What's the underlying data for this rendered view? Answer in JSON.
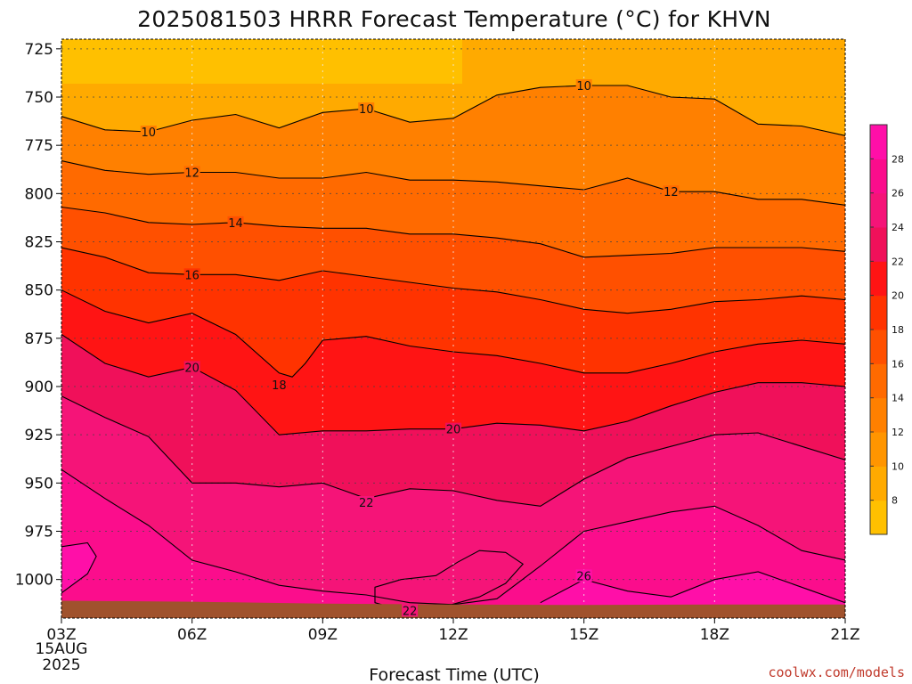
{
  "chart_data": {
    "type": "heatmap",
    "title": "2025081503 HRRR Forecast Temperature (°C) for KHVN",
    "xlabel": "Forecast Time (UTC)",
    "ylabel": "",
    "x_ticks": [
      "03Z",
      "06Z",
      "09Z",
      "12Z",
      "15Z",
      "18Z",
      "21Z"
    ],
    "x_start_label": [
      "15AUG",
      "2025"
    ],
    "y_ticks": [
      725,
      750,
      775,
      800,
      825,
      850,
      875,
      900,
      925,
      950,
      975,
      1000
    ],
    "ylim": [
      1020,
      720
    ],
    "xlim_hours": [
      3,
      21
    ],
    "colorbar_ticks": [
      8,
      10,
      12,
      14,
      16,
      18,
      20,
      22,
      24,
      26,
      28
    ],
    "colorbar_colors": [
      "#ffc000",
      "#ffaa00",
      "#ff9500",
      "#ff8000",
      "#ff6a00",
      "#ff5000",
      "#ff3300",
      "#ff1414",
      "#f0105a",
      "#f51478",
      "#fb0d8c",
      "#ff0fa8"
    ],
    "contours": [
      {
        "level": 10,
        "label": "10",
        "points": [
          [
            3,
            760
          ],
          [
            4,
            767
          ],
          [
            5,
            768
          ],
          [
            6,
            762
          ],
          [
            7,
            759
          ],
          [
            8,
            766
          ],
          [
            9,
            758
          ],
          [
            10,
            756
          ],
          [
            11,
            763
          ],
          [
            12,
            761
          ],
          [
            13,
            749
          ],
          [
            14,
            745
          ],
          [
            15,
            744
          ],
          [
            16,
            744
          ],
          [
            17,
            750
          ],
          [
            18,
            751
          ],
          [
            19,
            764
          ],
          [
            20,
            765
          ],
          [
            21,
            770
          ]
        ]
      },
      {
        "level": 12,
        "label": "12",
        "points": [
          [
            3,
            783
          ],
          [
            4,
            788
          ],
          [
            5,
            790
          ],
          [
            6,
            789
          ],
          [
            7,
            789
          ],
          [
            8,
            792
          ],
          [
            9,
            792
          ],
          [
            10,
            789
          ],
          [
            11,
            793
          ],
          [
            12,
            793
          ],
          [
            13,
            794
          ],
          [
            14,
            796
          ],
          [
            15,
            798
          ],
          [
            16,
            792
          ],
          [
            17,
            799
          ],
          [
            18,
            799
          ],
          [
            19,
            803
          ],
          [
            20,
            803
          ],
          [
            21,
            806
          ]
        ]
      },
      {
        "level": 14,
        "label": "14",
        "points": [
          [
            3,
            807
          ],
          [
            4,
            810
          ],
          [
            5,
            815
          ],
          [
            6,
            816
          ],
          [
            7,
            815
          ],
          [
            8,
            817
          ],
          [
            9,
            818
          ],
          [
            10,
            818
          ],
          [
            11,
            821
          ],
          [
            12,
            821
          ],
          [
            13,
            823
          ],
          [
            14,
            826
          ],
          [
            15,
            833
          ],
          [
            16,
            832
          ],
          [
            17,
            831
          ],
          [
            18,
            828
          ],
          [
            19,
            828
          ],
          [
            20,
            828
          ],
          [
            21,
            830
          ]
        ]
      },
      {
        "level": 16,
        "label": "16",
        "points": [
          [
            3,
            828
          ],
          [
            4,
            833
          ],
          [
            5,
            841
          ],
          [
            6,
            842
          ],
          [
            7,
            842
          ],
          [
            8,
            845
          ],
          [
            9,
            840
          ],
          [
            10,
            843
          ],
          [
            11,
            846
          ],
          [
            12,
            849
          ],
          [
            13,
            851
          ],
          [
            14,
            855
          ],
          [
            15,
            860
          ],
          [
            16,
            862
          ],
          [
            17,
            860
          ],
          [
            18,
            856
          ],
          [
            19,
            855
          ],
          [
            20,
            853
          ],
          [
            21,
            855
          ]
        ]
      },
      {
        "level": 18,
        "label": "18",
        "points": [
          [
            3,
            850
          ],
          [
            4,
            861
          ],
          [
            5,
            867
          ],
          [
            6,
            862
          ],
          [
            7,
            873
          ],
          [
            8,
            893
          ],
          [
            8.3,
            895
          ],
          [
            8.6,
            888
          ],
          [
            9,
            876
          ],
          [
            10,
            874
          ],
          [
            11,
            879
          ],
          [
            12,
            882
          ],
          [
            13,
            884
          ],
          [
            14,
            888
          ],
          [
            15,
            893
          ],
          [
            16,
            893
          ],
          [
            17,
            888
          ],
          [
            18,
            882
          ],
          [
            19,
            878
          ],
          [
            20,
            876
          ],
          [
            21,
            878
          ]
        ]
      },
      {
        "level": 20,
        "label": "20",
        "points": [
          [
            3,
            873
          ],
          [
            4,
            888
          ],
          [
            5,
            895
          ],
          [
            6,
            890
          ],
          [
            7,
            902
          ],
          [
            8,
            925
          ],
          [
            9,
            923
          ],
          [
            10,
            923
          ],
          [
            11,
            922
          ],
          [
            12,
            922
          ],
          [
            13,
            919
          ],
          [
            14,
            920
          ],
          [
            15,
            923
          ],
          [
            16,
            918
          ],
          [
            17,
            910
          ],
          [
            18,
            903
          ],
          [
            19,
            898
          ],
          [
            20,
            898
          ],
          [
            21,
            900
          ]
        ]
      },
      {
        "level": 22,
        "label": "22",
        "points": [
          [
            3,
            905
          ],
          [
            4,
            916
          ],
          [
            5,
            926
          ],
          [
            6,
            950
          ],
          [
            7,
            950
          ],
          [
            8,
            952
          ],
          [
            9,
            950
          ],
          [
            10,
            958
          ],
          [
            11,
            953
          ],
          [
            12,
            954
          ],
          [
            13,
            959
          ],
          [
            14,
            962
          ],
          [
            15,
            948
          ],
          [
            16,
            937
          ],
          [
            17,
            931
          ],
          [
            18,
            925
          ],
          [
            19,
            924
          ],
          [
            20,
            931
          ],
          [
            21,
            938
          ]
        ]
      },
      {
        "level": 24,
        "label": "",
        "points": [
          [
            3,
            943
          ],
          [
            4,
            958
          ],
          [
            5,
            972
          ],
          [
            6,
            990
          ],
          [
            7,
            996
          ],
          [
            8,
            1003
          ],
          [
            9,
            1006
          ],
          [
            10,
            1008
          ],
          [
            11,
            1012
          ],
          [
            12,
            1013
          ],
          [
            13,
            1010
          ],
          [
            14,
            993
          ],
          [
            15,
            975
          ],
          [
            16,
            970
          ],
          [
            17,
            965
          ],
          [
            18,
            962
          ],
          [
            19,
            972
          ],
          [
            20,
            985
          ],
          [
            21,
            990
          ]
        ]
      },
      {
        "level": 26,
        "label": "26",
        "points": [
          [
            14,
            1012
          ],
          [
            15,
            1000
          ],
          [
            16,
            1006
          ],
          [
            17,
            1009
          ],
          [
            18,
            1000
          ],
          [
            19,
            996
          ],
          [
            20,
            1004
          ],
          [
            21,
            1012
          ]
        ]
      }
    ],
    "contour_label_positions": [
      {
        "text": "10",
        "x": 5.0,
        "p": 768
      },
      {
        "text": "10",
        "x": 10.0,
        "p": 756
      },
      {
        "text": "10",
        "x": 15.0,
        "p": 744
      },
      {
        "text": "12",
        "x": 6.0,
        "p": 789
      },
      {
        "text": "12",
        "x": 17.0,
        "p": 799
      },
      {
        "text": "14",
        "x": 7.0,
        "p": 815
      },
      {
        "text": "16",
        "x": 6.0,
        "p": 842
      },
      {
        "text": "18",
        "x": 8.0,
        "p": 899
      },
      {
        "text": "20",
        "x": 6.0,
        "p": 890
      },
      {
        "text": "20",
        "x": 12.0,
        "p": 922
      },
      {
        "text": "22",
        "x": 10.0,
        "p": 960
      },
      {
        "text": "22",
        "x": 11.0,
        "p": 1016
      },
      {
        "text": "26",
        "x": 15.0,
        "p": 998
      }
    ]
  },
  "credit": "coolwx.com/models",
  "colors": {
    "background": "#ffffff",
    "terrain": "#a0522d",
    "contour": "#000000",
    "grid": "#888888"
  }
}
